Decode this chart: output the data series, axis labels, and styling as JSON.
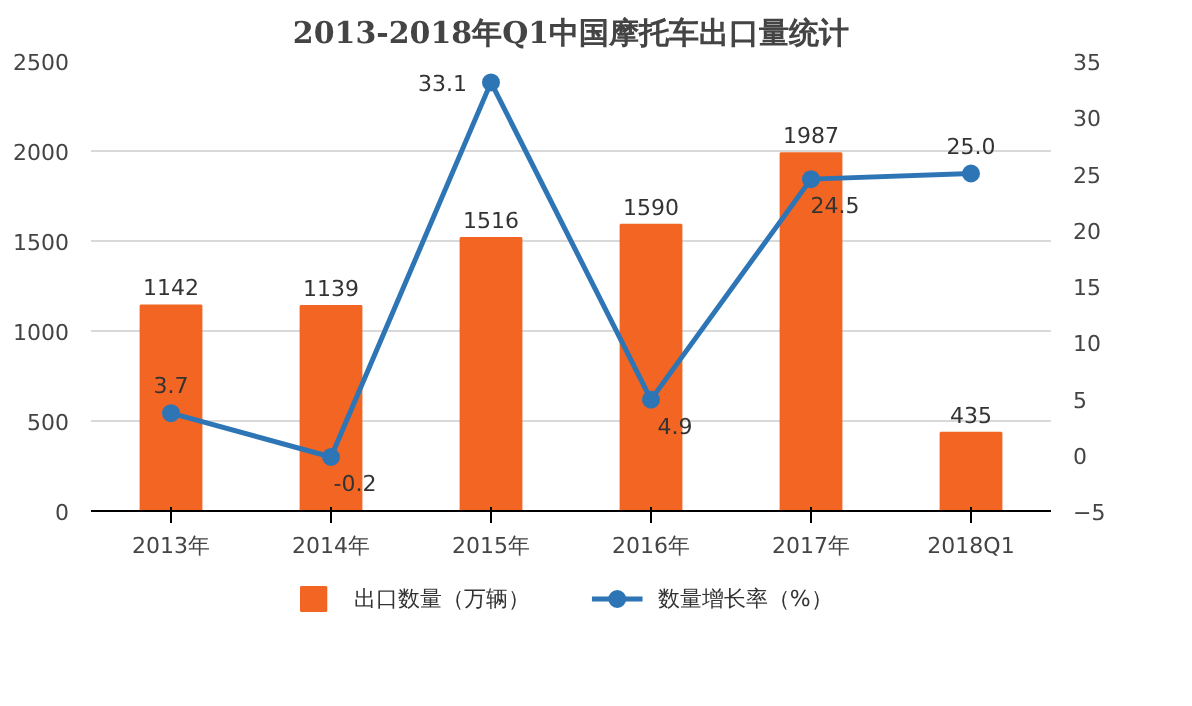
{
  "chart_data": {
    "type": "bar",
    "title": "2013-2018年Q1中国摩托车出口量统计",
    "categories": [
      "2013年",
      "2014年",
      "2015年",
      "2016年",
      "2017年",
      "2018Q1"
    ],
    "series": [
      {
        "name": "出口数量（万辆）",
        "color": "#f26522",
        "values": [
          1142,
          1139,
          1516,
          1590,
          1987,
          435
        ]
      },
      {
        "name": "数量增长率（%）",
        "type": "line",
        "axis": "y2",
        "color": "#2e75b6",
        "marker": "circle",
        "values": [
          3.7,
          -0.2,
          33.1,
          4.9,
          24.5,
          25.0
        ],
        "value_labels": [
          "3.7",
          "-0.2",
          "33.1",
          "4.9",
          "24.5",
          "25.0"
        ]
      }
    ],
    "ylim": [
      0,
      2500
    ],
    "yticks": [
      0,
      500,
      1000,
      1500,
      2000,
      2500
    ],
    "y2lim": [
      -5,
      35
    ],
    "y2ticks": [
      -5,
      0,
      5,
      10,
      15,
      20,
      25,
      30,
      35
    ],
    "grid": "y",
    "legend": "bottom",
    "data_labels": true
  }
}
